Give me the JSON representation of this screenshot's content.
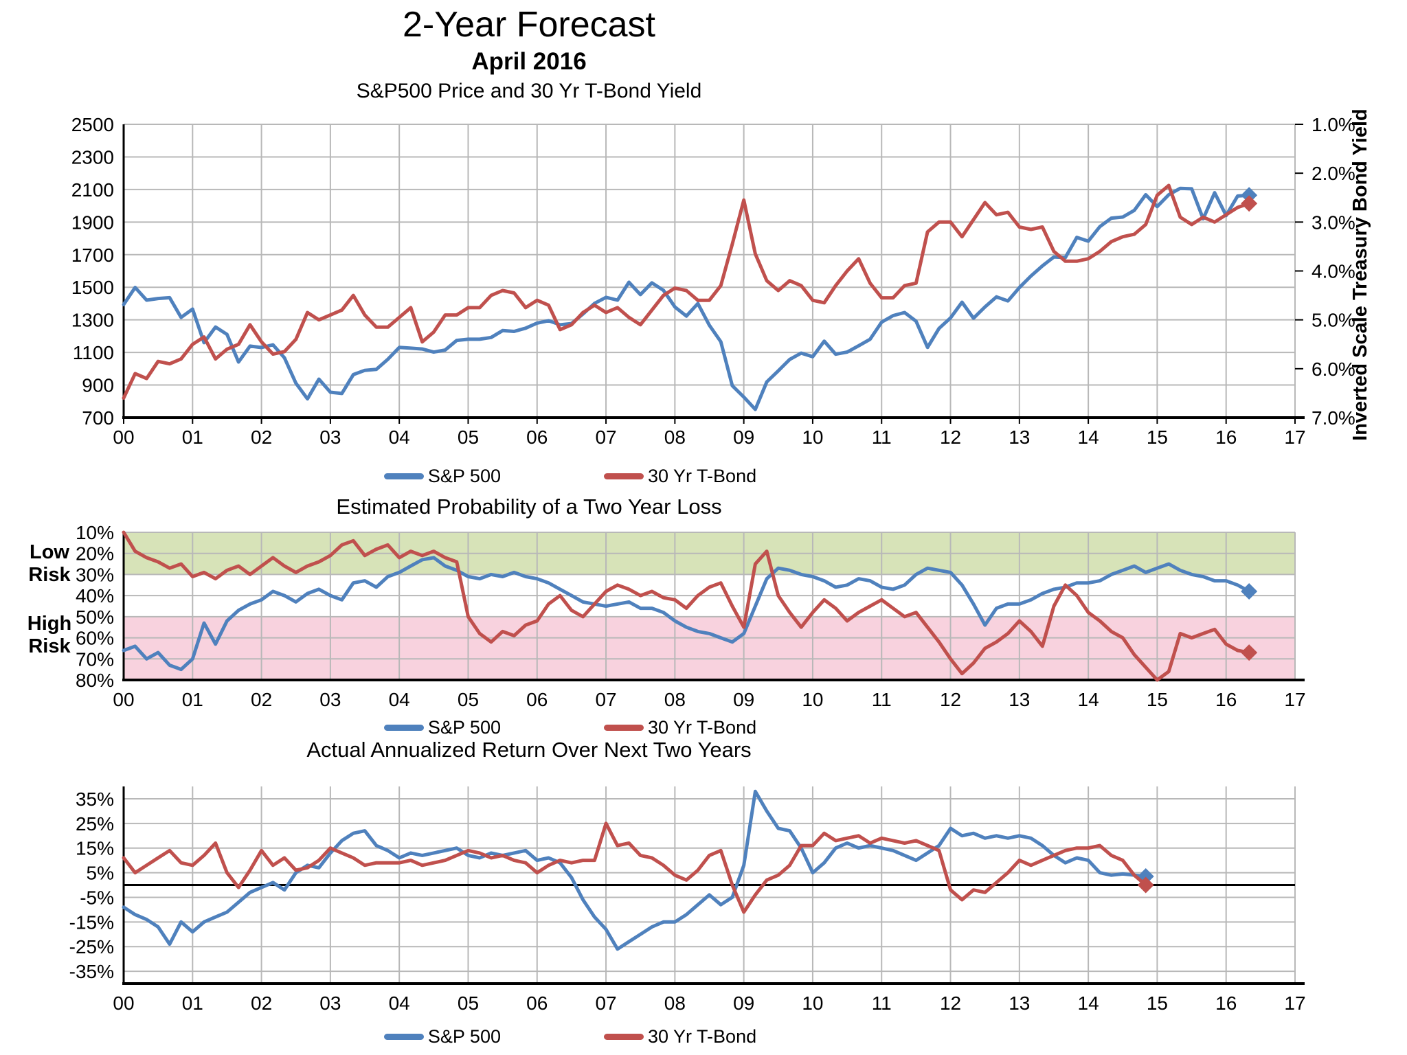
{
  "page": {
    "title": "2-Year Forecast",
    "subtitle": "April 2016"
  },
  "colors": {
    "sp500": "#4F81BD",
    "tbond": "#C0504D",
    "green_band": "#D7E3B8",
    "pink_band": "#F8D2DE",
    "grid": "#B8B8B8",
    "axis": "#000000"
  },
  "chart_data": [
    {
      "id": "price",
      "type": "line",
      "title": "S&P500 Price and 30 Yr T-Bond Yield",
      "x_range": [
        2000,
        2017
      ],
      "x_ticks": [
        "00",
        "01",
        "02",
        "03",
        "04",
        "05",
        "06",
        "07",
        "08",
        "09",
        "10",
        "11",
        "12",
        "13",
        "14",
        "15",
        "16",
        "17"
      ],
      "left_axis": {
        "range": [
          700,
          2500
        ],
        "ticks": [
          "2500",
          "2300",
          "2100",
          "1900",
          "1700",
          "1500",
          "1300",
          "1100",
          "900",
          "700"
        ]
      },
      "right_axis": {
        "range": [
          1.0,
          7.0
        ],
        "inverted": true,
        "title": "Inverted Scale Treasury Bond Yield",
        "ticks": [
          "1.0%",
          "2.0%",
          "3.0%",
          "4.0%",
          "5.0%",
          "6.0%",
          "7.0%"
        ]
      },
      "legend_position": "bottom",
      "grid": true,
      "series": [
        {
          "name": "S&P 500",
          "axis": "left",
          "color_key": "sp500",
          "start": 2000,
          "step": 0.16667,
          "end_marker": "diamond",
          "values": [
            1394,
            1499,
            1421,
            1431,
            1436,
            1315,
            1366,
            1160,
            1256,
            1211,
            1041,
            1139,
            1130,
            1147,
            1067,
            911,
            815,
            936,
            856,
            848,
            964,
            990,
            996,
            1058,
            1131,
            1126,
            1121,
            1102,
            1115,
            1174,
            1181,
            1181,
            1192,
            1234,
            1229,
            1249,
            1280,
            1295,
            1270,
            1277,
            1336,
            1401,
            1438,
            1421,
            1531,
            1455,
            1527,
            1481,
            1379,
            1323,
            1400,
            1267,
            1166,
            896,
            826,
            750,
            919,
            987,
            1057,
            1096,
            1074,
            1169,
            1089,
            1102,
            1141,
            1181,
            1286,
            1326,
            1345,
            1292,
            1131,
            1247,
            1312,
            1408,
            1310,
            1379,
            1441,
            1416,
            1498,
            1569,
            1631,
            1686,
            1682,
            1806,
            1783,
            1872,
            1924,
            1931,
            1972,
            2068,
            1995,
            2068,
            2107,
            2104,
            1920,
            2080,
            1940,
            2060,
            2065
          ]
        },
        {
          "name": "30 Yr T-Bond",
          "axis": "right",
          "color_key": "tbond",
          "start": 2000,
          "step": 0.16667,
          "end_marker": "diamond",
          "values": [
            6.6,
            6.1,
            6.2,
            5.85,
            5.9,
            5.8,
            5.5,
            5.35,
            5.8,
            5.6,
            5.5,
            5.1,
            5.45,
            5.7,
            5.65,
            5.4,
            4.85,
            5.0,
            4.9,
            4.8,
            4.5,
            4.9,
            5.15,
            5.15,
            4.95,
            4.75,
            5.45,
            5.25,
            4.9,
            4.9,
            4.75,
            4.75,
            4.5,
            4.4,
            4.45,
            4.75,
            4.6,
            4.7,
            5.2,
            5.1,
            4.85,
            4.7,
            4.85,
            4.75,
            4.95,
            5.1,
            4.8,
            4.5,
            4.35,
            4.4,
            4.6,
            4.6,
            4.3,
            3.45,
            2.55,
            3.65,
            4.2,
            4.4,
            4.2,
            4.3,
            4.6,
            4.65,
            4.3,
            4.0,
            3.75,
            4.25,
            4.55,
            4.55,
            4.3,
            4.25,
            3.2,
            3.0,
            3.0,
            3.3,
            2.95,
            2.6,
            2.85,
            2.8,
            3.1,
            3.15,
            3.1,
            3.6,
            3.8,
            3.8,
            3.75,
            3.6,
            3.4,
            3.3,
            3.25,
            3.05,
            2.45,
            2.25,
            2.9,
            3.05,
            2.9,
            3.0,
            2.85,
            2.7,
            2.62
          ]
        }
      ]
    },
    {
      "id": "probability",
      "type": "line",
      "title": "Estimated Probability of a Two Year Loss",
      "x_range": [
        2000,
        2017
      ],
      "x_ticks": [
        "00",
        "01",
        "02",
        "03",
        "04",
        "05",
        "06",
        "07",
        "08",
        "09",
        "10",
        "11",
        "12",
        "13",
        "14",
        "15",
        "16",
        "17"
      ],
      "y_axis": {
        "range": [
          10,
          80
        ],
        "inverted_display": true,
        "unit": "%",
        "ticks": [
          "10%",
          "20%",
          "30%",
          "40%",
          "50%",
          "60%",
          "70%",
          "80%"
        ]
      },
      "bands": [
        {
          "label": "low-risk-zone",
          "from": 10,
          "to": 30,
          "color_key": "green_band"
        },
        {
          "label": "high-risk-zone",
          "from": 50,
          "to": 80,
          "color_key": "pink_band"
        }
      ],
      "annotations": [
        {
          "id": "low",
          "lines": [
            "Low",
            "Risk"
          ]
        },
        {
          "id": "high",
          "lines": [
            "High",
            "Risk"
          ]
        }
      ],
      "legend_position": "bottom",
      "grid": true,
      "series": [
        {
          "name": "S&P 500",
          "color_key": "sp500",
          "start": 2000,
          "step": 0.16667,
          "end_marker": "diamond",
          "values": [
            66,
            64,
            70,
            67,
            73,
            75,
            70,
            53,
            63,
            52,
            47,
            44,
            42,
            38,
            40,
            43,
            39,
            37,
            40,
            42,
            34,
            33,
            36,
            31,
            29,
            26,
            23,
            22,
            26,
            28,
            31,
            32,
            30,
            31,
            29,
            31,
            32,
            34,
            37,
            40,
            43,
            44,
            45,
            44,
            43,
            46,
            46,
            48,
            52,
            55,
            57,
            58,
            60,
            62,
            58,
            45,
            32,
            27,
            28,
            30,
            31,
            33,
            36,
            35,
            32,
            33,
            36,
            37,
            35,
            30,
            27,
            28,
            29,
            35,
            44,
            54,
            46,
            44,
            44,
            42,
            39,
            37,
            36,
            34,
            34,
            33,
            30,
            28,
            26,
            29,
            27,
            25,
            28,
            30,
            31,
            33,
            33,
            35,
            38
          ]
        },
        {
          "name": "30 Yr T-Bond",
          "color_key": "tbond",
          "start": 2000,
          "step": 0.16667,
          "end_marker": "diamond",
          "values": [
            10,
            19,
            22,
            24,
            27,
            25,
            31,
            29,
            32,
            28,
            26,
            30,
            26,
            22,
            26,
            29,
            26,
            24,
            21,
            16,
            14,
            21,
            18,
            16,
            22,
            19,
            21,
            19,
            22,
            24,
            50,
            58,
            62,
            57,
            59,
            54,
            52,
            44,
            40,
            47,
            50,
            44,
            38,
            35,
            37,
            40,
            38,
            41,
            42,
            46,
            40,
            36,
            34,
            45,
            55,
            25,
            19,
            40,
            48,
            55,
            48,
            42,
            46,
            52,
            48,
            45,
            42,
            46,
            50,
            48,
            55,
            62,
            70,
            77,
            72,
            65,
            62,
            58,
            52,
            57,
            64,
            45,
            35,
            40,
            48,
            52,
            57,
            60,
            68,
            74,
            80,
            76,
            58,
            60,
            58,
            56,
            63,
            66,
            67
          ]
        }
      ]
    },
    {
      "id": "returns",
      "type": "line",
      "title": "Actual Annualized Return Over Next Two Years",
      "x_range": [
        2000,
        2017
      ],
      "x_ticks": [
        "00",
        "01",
        "02",
        "03",
        "04",
        "05",
        "06",
        "07",
        "08",
        "09",
        "10",
        "11",
        "12",
        "13",
        "14",
        "15",
        "16",
        "17"
      ],
      "y_axis": {
        "range": [
          -40,
          40
        ],
        "unit": "%",
        "zero_line": true,
        "ticks": [
          "35%",
          "25%",
          "15%",
          "5%",
          "-5%",
          "-15%",
          "-25%",
          "-35%"
        ]
      },
      "legend_position": "bottom",
      "grid": true,
      "series": [
        {
          "name": "S&P 500",
          "color_key": "sp500",
          "start": 2000,
          "step": 0.16667,
          "end_marker": "diamond",
          "values": [
            -9,
            -12,
            -14,
            -17,
            -24,
            -15,
            -19,
            -15,
            -13,
            -11,
            -7,
            -3,
            -1,
            1,
            -2,
            5,
            8,
            7,
            13,
            18,
            21,
            22,
            16,
            14,
            11,
            13,
            12,
            13,
            14,
            15,
            12,
            11,
            13,
            12,
            13,
            14,
            10,
            11,
            9,
            3,
            -6,
            -13,
            -18,
            -26,
            -23,
            -20,
            -17,
            -15,
            -15,
            -12,
            -8,
            -4,
            -8,
            -5,
            8,
            38,
            30,
            23,
            22,
            15,
            5,
            9,
            15,
            17,
            15,
            16,
            15,
            14,
            12,
            10,
            13,
            16,
            23,
            20,
            21,
            19,
            20,
            19,
            20,
            19,
            16,
            12,
            9,
            11,
            10,
            5,
            4,
            4.5,
            4,
            3.5
          ]
        },
        {
          "name": "30 Yr T-Bond",
          "color_key": "tbond",
          "start": 2000,
          "step": 0.16667,
          "end_marker": "diamond",
          "values": [
            11,
            5,
            8,
            11,
            14,
            9,
            8,
            12,
            17,
            5,
            -1,
            6,
            14,
            8,
            11,
            6,
            7,
            10,
            15,
            13,
            11,
            8,
            9,
            9,
            9,
            10,
            8,
            9,
            10,
            12,
            14,
            13,
            11,
            12,
            10,
            9,
            5,
            8,
            10,
            9,
            10,
            10,
            25,
            16,
            17,
            12,
            11,
            8,
            4,
            2,
            6,
            12,
            14,
            0,
            -11,
            -4,
            2,
            4,
            8,
            16,
            16,
            21,
            18,
            19,
            20,
            17,
            19,
            18,
            17,
            18,
            16,
            14,
            -2,
            -6,
            -2,
            -3,
            1,
            5,
            10,
            8,
            10,
            12,
            14,
            15,
            15,
            16,
            12,
            10,
            4,
            0
          ]
        }
      ]
    }
  ]
}
